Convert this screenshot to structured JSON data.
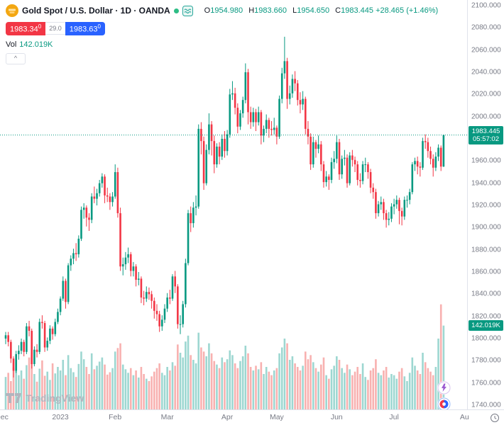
{
  "header": {
    "title": "Gold Spot / U.S. Dollar · 1D · OANDA",
    "ohlc": {
      "open_label": "O",
      "open": "1954.980",
      "high_label": "H",
      "high": "1983.660",
      "low_label": "L",
      "low": "1954.650",
      "close_label": "C",
      "close": "1983.445",
      "change": "+28.465 (+1.46%)"
    },
    "bid": "1983.34",
    "bid_sup": "0",
    "spread": "29.0",
    "ask": "1983.63",
    "ask_sup": "0",
    "volume_row": {
      "label": "Vol",
      "value": "142.019K"
    },
    "collapse_button": "^"
  },
  "footer": {
    "logo_text": "TradingView"
  },
  "axis_tags": {
    "price": "1983.445",
    "countdown": "05:57:02",
    "volume": "142.019K"
  },
  "chart_data": {
    "type": "candlestick",
    "title": "Gold Spot / U.S. Dollar",
    "interval": "1D",
    "exchange": "OANDA",
    "legend_position": "top-left",
    "grid": false,
    "last_price": 1983.445,
    "ylim": [
      1740,
      2100
    ],
    "y_ticks": [
      "2100.000",
      "2080.000",
      "2060.000",
      "2040.000",
      "2020.000",
      "2000.000",
      "1980.000",
      "1960.000",
      "1940.000",
      "1920.000",
      "1900.000",
      "1880.000",
      "1860.000",
      "1840.000",
      "1820.000",
      "1800.000",
      "1780.000",
      "1760.000",
      "1740.000"
    ],
    "x_labels": [
      {
        "label": "Dec",
        "i": -1.5
      },
      {
        "label": "2023",
        "i": 21
      },
      {
        "label": "Feb",
        "i": 42
      },
      {
        "label": "Mar",
        "i": 62
      },
      {
        "label": "Apr",
        "i": 85
      },
      {
        "label": "May",
        "i": 104
      },
      {
        "label": "Jun",
        "i": 127
      },
      {
        "label": "Jul",
        "i": 149
      },
      {
        "label": "Au",
        "i": 176
      }
    ],
    "colors": {
      "up": "#089981",
      "down": "#f23645",
      "volume_up": "rgba(38,166,154,0.45)",
      "volume_down": "rgba(239,83,80,0.45)",
      "accent_blue": "#2962ff",
      "tag_bg": "#089981"
    },
    "candles": [
      [
        1800,
        1806,
        1795,
        1803
      ],
      [
        1803,
        1806,
        1793,
        1797
      ],
      [
        1797,
        1799,
        1778,
        1782
      ],
      [
        1782,
        1784,
        1765,
        1771
      ],
      [
        1771,
        1789,
        1769,
        1786
      ],
      [
        1786,
        1794,
        1781,
        1789
      ],
      [
        1789,
        1800,
        1786,
        1797
      ],
      [
        1797,
        1799,
        1784,
        1788
      ],
      [
        1788,
        1814,
        1786,
        1811
      ],
      [
        1811,
        1816,
        1802,
        1807
      ],
      [
        1807,
        1809,
        1773,
        1777
      ],
      [
        1777,
        1793,
        1775,
        1790
      ],
      [
        1790,
        1795,
        1783,
        1788
      ],
      [
        1788,
        1818,
        1786,
        1815
      ],
      [
        1815,
        1821,
        1809,
        1814
      ],
      [
        1814,
        1816,
        1788,
        1792
      ],
      [
        1792,
        1801,
        1789,
        1798
      ],
      [
        1798,
        1812,
        1795,
        1809
      ],
      [
        1809,
        1811,
        1799,
        1804
      ],
      [
        1804,
        1818,
        1802,
        1815
      ],
      [
        1815,
        1827,
        1813,
        1824
      ],
      [
        1824,
        1838,
        1821,
        1836
      ],
      [
        1836,
        1856,
        1834,
        1852
      ],
      [
        1852,
        1854,
        1827,
        1833
      ],
      [
        1833,
        1868,
        1831,
        1866
      ],
      [
        1866,
        1875,
        1861,
        1872
      ],
      [
        1872,
        1881,
        1867,
        1877
      ],
      [
        1877,
        1886,
        1870,
        1876
      ],
      [
        1876,
        1893,
        1873,
        1890
      ],
      [
        1890,
        1919,
        1888,
        1916
      ],
      [
        1916,
        1922,
        1908,
        1918
      ],
      [
        1918,
        1920,
        1901,
        1909
      ],
      [
        1909,
        1913,
        1897,
        1907
      ],
      [
        1907,
        1931,
        1904,
        1928
      ],
      [
        1928,
        1937,
        1922,
        1926
      ],
      [
        1926,
        1935,
        1920,
        1931
      ],
      [
        1931,
        1943,
        1928,
        1940
      ],
      [
        1940,
        1949,
        1936,
        1946
      ],
      [
        1946,
        1948,
        1922,
        1929
      ],
      [
        1929,
        1936,
        1923,
        1928
      ],
      [
        1928,
        1931,
        1916,
        1923
      ],
      [
        1923,
        1932,
        1919,
        1928
      ],
      [
        1928,
        1957,
        1926,
        1950
      ],
      [
        1950,
        1954,
        1909,
        1913
      ],
      [
        1913,
        1918,
        1861,
        1865
      ],
      [
        1865,
        1873,
        1857,
        1867
      ],
      [
        1867,
        1878,
        1862,
        1873
      ],
      [
        1873,
        1882,
        1868,
        1876
      ],
      [
        1876,
        1878,
        1856,
        1861
      ],
      [
        1861,
        1869,
        1856,
        1865
      ],
      [
        1865,
        1867,
        1847,
        1853
      ],
      [
        1853,
        1860,
        1848,
        1854
      ],
      [
        1854,
        1856,
        1832,
        1837
      ],
      [
        1837,
        1843,
        1830,
        1836
      ],
      [
        1836,
        1847,
        1833,
        1842
      ],
      [
        1842,
        1846,
        1835,
        1840
      ],
      [
        1840,
        1843,
        1827,
        1834
      ],
      [
        1834,
        1837,
        1818,
        1825
      ],
      [
        1825,
        1831,
        1816,
        1822
      ],
      [
        1822,
        1825,
        1806,
        1811
      ],
      [
        1811,
        1821,
        1807,
        1817
      ],
      [
        1817,
        1831,
        1814,
        1827
      ],
      [
        1827,
        1841,
        1824,
        1837
      ],
      [
        1837,
        1844,
        1831,
        1836
      ],
      [
        1836,
        1858,
        1834,
        1856
      ],
      [
        1856,
        1861,
        1841,
        1847
      ],
      [
        1847,
        1849,
        1809,
        1813
      ],
      [
        1813,
        1821,
        1804,
        1813
      ],
      [
        1813,
        1834,
        1810,
        1831
      ],
      [
        1831,
        1872,
        1828,
        1868
      ],
      [
        1868,
        1916,
        1866,
        1913
      ],
      [
        1913,
        1919,
        1896,
        1904
      ],
      [
        1904,
        1923,
        1900,
        1918
      ],
      [
        1918,
        1929,
        1911,
        1919
      ],
      [
        1919,
        1993,
        1917,
        1989
      ],
      [
        1989,
        1995,
        1966,
        1978
      ],
      [
        1978,
        1982,
        1934,
        1940
      ],
      [
        1940,
        1975,
        1938,
        1970
      ],
      [
        1970,
        2003,
        1966,
        1993
      ],
      [
        1993,
        1996,
        1965,
        1978
      ],
      [
        1978,
        1983,
        1949,
        1957
      ],
      [
        1957,
        1976,
        1954,
        1973
      ],
      [
        1973,
        1977,
        1957,
        1964
      ],
      [
        1964,
        1984,
        1961,
        1980
      ],
      [
        1980,
        1987,
        1963,
        1969
      ],
      [
        1969,
        1988,
        1965,
        1984
      ],
      [
        1984,
        2025,
        1981,
        2020
      ],
      [
        2020,
        2032,
        2015,
        2021
      ],
      [
        2021,
        2026,
        2002,
        2008
      ],
      [
        2008,
        2012,
        1985,
        1991
      ],
      [
        1991,
        2006,
        1988,
        2003
      ],
      [
        2003,
        2018,
        1999,
        2015
      ],
      [
        2015,
        2048,
        2012,
        2040
      ],
      [
        2040,
        2043,
        1993,
        2004
      ],
      [
        2004,
        2009,
        1989,
        1995
      ],
      [
        1995,
        2008,
        1991,
        2004
      ],
      [
        2004,
        2007,
        1987,
        1995
      ],
      [
        1995,
        2009,
        1992,
        2004
      ],
      [
        2004,
        2006,
        1975,
        1983
      ],
      [
        1983,
        1992,
        1977,
        1989
      ],
      [
        1989,
        2002,
        1985,
        1997
      ],
      [
        1997,
        1999,
        1981,
        1989
      ],
      [
        1989,
        1996,
        1983,
        1988
      ],
      [
        1988,
        1999,
        1984,
        1990
      ],
      [
        1990,
        1992,
        1975,
        1982
      ],
      [
        1982,
        2019,
        1980,
        2016
      ],
      [
        2016,
        2044,
        2012,
        2039
      ],
      [
        2039,
        2072,
        2034,
        2050
      ],
      [
        2050,
        2053,
        2007,
        2016
      ],
      [
        2016,
        2028,
        2011,
        2021
      ],
      [
        2021,
        2038,
        2017,
        2034
      ],
      [
        2034,
        2041,
        2023,
        2030
      ],
      [
        2030,
        2033,
        2010,
        2015
      ],
      [
        2015,
        2022,
        2003,
        2011
      ],
      [
        2011,
        2023,
        2006,
        2016
      ],
      [
        2016,
        2018,
        1984,
        1989
      ],
      [
        1989,
        1996,
        1975,
        1982
      ],
      [
        1982,
        1985,
        1952,
        1957
      ],
      [
        1957,
        1982,
        1954,
        1977
      ],
      [
        1977,
        1979,
        1963,
        1971
      ],
      [
        1971,
        1983,
        1967,
        1975
      ],
      [
        1975,
        1978,
        1951,
        1957
      ],
      [
        1957,
        1960,
        1936,
        1941
      ],
      [
        1941,
        1951,
        1937,
        1946
      ],
      [
        1946,
        1948,
        1934,
        1943
      ],
      [
        1943,
        1963,
        1940,
        1959
      ],
      [
        1959,
        1969,
        1953,
        1962
      ],
      [
        1962,
        1983,
        1958,
        1977
      ],
      [
        1977,
        1980,
        1943,
        1948
      ],
      [
        1948,
        1965,
        1944,
        1962
      ],
      [
        1962,
        1970,
        1956,
        1963
      ],
      [
        1963,
        1966,
        1936,
        1940
      ],
      [
        1940,
        1968,
        1938,
        1965
      ],
      [
        1965,
        1970,
        1955,
        1961
      ],
      [
        1961,
        1964,
        1950,
        1957
      ],
      [
        1957,
        1960,
        1938,
        1943
      ],
      [
        1943,
        1949,
        1936,
        1942
      ],
      [
        1942,
        1960,
        1939,
        1957
      ],
      [
        1957,
        1963,
        1950,
        1957
      ],
      [
        1957,
        1959,
        1944,
        1950
      ],
      [
        1950,
        1953,
        1931,
        1936
      ],
      [
        1936,
        1940,
        1926,
        1932
      ],
      [
        1932,
        1935,
        1908,
        1913
      ],
      [
        1913,
        1924,
        1910,
        1921
      ],
      [
        1921,
        1928,
        1916,
        1923
      ],
      [
        1923,
        1926,
        1907,
        1913
      ],
      [
        1913,
        1916,
        1900,
        1907
      ],
      [
        1907,
        1914,
        1902,
        1908
      ],
      [
        1908,
        1922,
        1905,
        1919
      ],
      [
        1919,
        1926,
        1912,
        1921
      ],
      [
        1921,
        1929,
        1917,
        1925
      ],
      [
        1925,
        1927,
        1903,
        1915
      ],
      [
        1915,
        1918,
        1902,
        1910
      ],
      [
        1910,
        1928,
        1907,
        1925
      ],
      [
        1925,
        1929,
        1918,
        1925
      ],
      [
        1925,
        1935,
        1921,
        1932
      ],
      [
        1932,
        1959,
        1930,
        1957
      ],
      [
        1957,
        1963,
        1951,
        1960
      ],
      [
        1960,
        1964,
        1948,
        1955
      ],
      [
        1955,
        1959,
        1946,
        1954
      ],
      [
        1954,
        1981,
        1952,
        1978
      ],
      [
        1978,
        1984,
        1971,
        1977
      ],
      [
        1977,
        1981,
        1963,
        1969
      ],
      [
        1969,
        1973,
        1957,
        1962
      ],
      [
        1962,
        1966,
        1946,
        1954
      ],
      [
        1954,
        1968,
        1951,
        1964
      ],
      [
        1964,
        1975,
        1960,
        1972
      ],
      [
        1972,
        1974,
        1951,
        1955
      ],
      [
        1954.98,
        1983.66,
        1954.65,
        1983.445
      ]
    ],
    "volumes": [
      55,
      62,
      48,
      71,
      80,
      58,
      66,
      52,
      75,
      88,
      92,
      60,
      47,
      69,
      83,
      57,
      64,
      50,
      78,
      61,
      72,
      66,
      84,
      58,
      92,
      70,
      63,
      55,
      77,
      98,
      85,
      72,
      60,
      95,
      68,
      74,
      81,
      88,
      76,
      59,
      63,
      70,
      98,
      104,
      112,
      76,
      68,
      62,
      70,
      58,
      66,
      54,
      72,
      60,
      52,
      48,
      56,
      64,
      70,
      78,
      62,
      58,
      72,
      66,
      80,
      74,
      110,
      96,
      88,
      115,
      125,
      92,
      84,
      78,
      130,
      105,
      98,
      90,
      112,
      95,
      82,
      76,
      70,
      88,
      80,
      85,
      100,
      92,
      78,
      70,
      82,
      90,
      108,
      95,
      72,
      66,
      74,
      68,
      80,
      60,
      72,
      64,
      58,
      66,
      70,
      95,
      105,
      120,
      112,
      84,
      90,
      78,
      72,
      66,
      74,
      98,
      85,
      92,
      80,
      70,
      64,
      76,
      88,
      58,
      52,
      68,
      74,
      90,
      84,
      70,
      62,
      76,
      68,
      58,
      64,
      72,
      60,
      78,
      55,
      50,
      66,
      70,
      85,
      62,
      58,
      66,
      72,
      54,
      60,
      58,
      52,
      64,
      70,
      56,
      48,
      62,
      88,
      74,
      66,
      60,
      96,
      80,
      70,
      64,
      58,
      72,
      120,
      178,
      142.019
    ]
  }
}
